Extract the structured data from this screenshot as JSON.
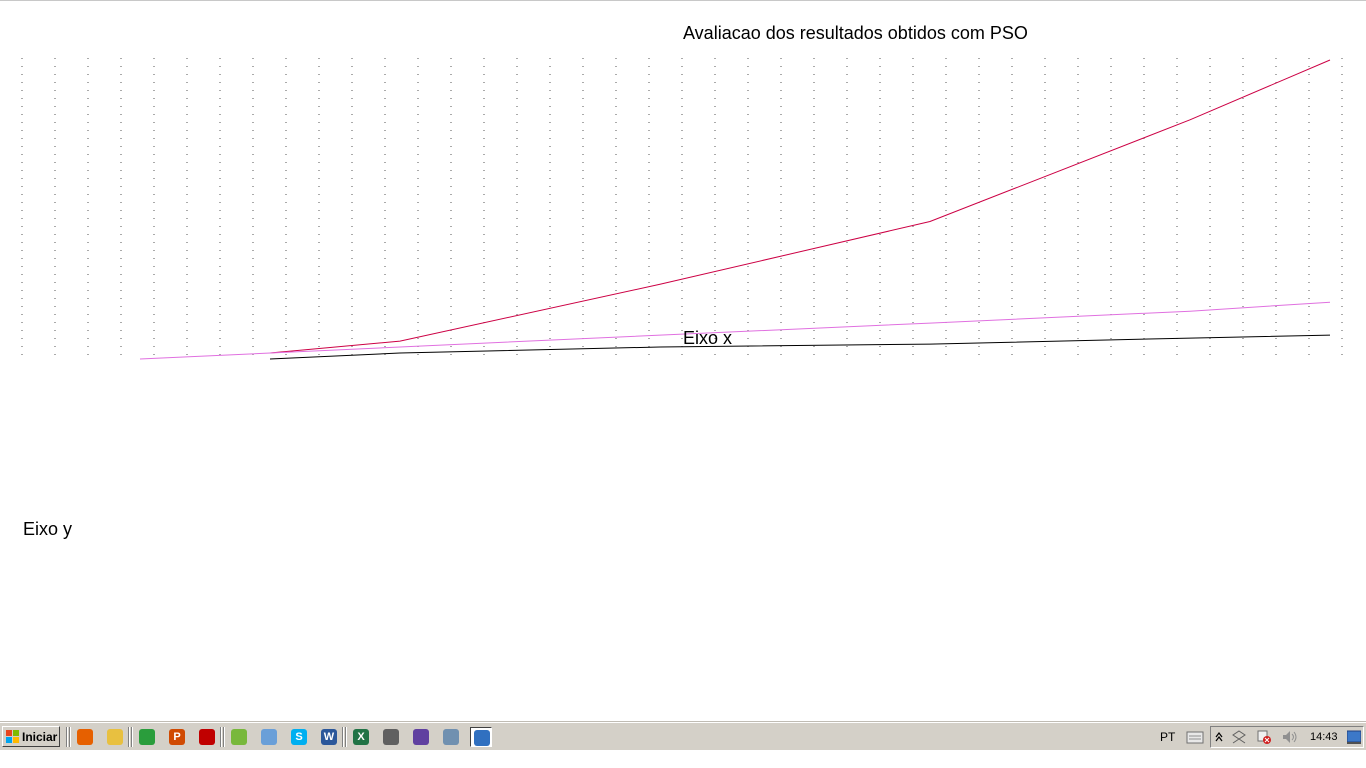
{
  "chart_data": {
    "type": "line",
    "title": "Avaliacao dos resultados obtidos com PSO",
    "xlabel": "Eixo x",
    "ylabel": "Eixo y",
    "grid": true,
    "series": [
      {
        "color": "#cc0044",
        "x": [
          0.27,
          0.4,
          0.66,
          0.93,
          1.19,
          1.33
        ],
        "y": [
          0.02,
          0.06,
          0.25,
          0.46,
          0.8,
          1.0
        ]
      },
      {
        "color": "#e070e0",
        "x": [
          0.14,
          0.4,
          0.66,
          0.93,
          1.19,
          1.33
        ],
        "y": [
          0.0,
          0.04,
          0.08,
          0.12,
          0.16,
          0.19
        ]
      },
      {
        "color": "#000000",
        "x": [
          0.27,
          0.4,
          0.66,
          0.93,
          1.19,
          1.33
        ],
        "y": [
          0.0,
          0.02,
          0.04,
          0.05,
          0.07,
          0.08
        ]
      }
    ]
  },
  "taskbar": {
    "start_label": "Iniciar",
    "apps": [
      {
        "icon": "firefox-icon",
        "color": "#e66000"
      },
      {
        "icon": "folder-icon",
        "color": "#e8c040"
      },
      {
        "icon": "chrome-icon",
        "color": "#2a9d3c"
      },
      {
        "icon": "powerpoint-icon",
        "color": "#d04a02",
        "glyph": "P"
      },
      {
        "icon": "acrobat-icon",
        "color": "#c00000"
      },
      {
        "icon": "utorrent-icon",
        "color": "#78b83c"
      },
      {
        "icon": "paint-icon",
        "color": "#6a9fd8"
      },
      {
        "icon": "skype-icon",
        "color": "#00aff0",
        "glyph": "S"
      },
      {
        "icon": "word-icon",
        "color": "#2b579a",
        "glyph": "W"
      },
      {
        "icon": "excel-icon",
        "color": "#217346",
        "glyph": "X"
      },
      {
        "icon": "printer-icon",
        "color": "#606060"
      },
      {
        "icon": "media-player-icon",
        "color": "#6040a0"
      },
      {
        "icon": "window-icon",
        "color": "#7090b0"
      },
      {
        "icon": "active-window-icon",
        "color": "#3070c0"
      }
    ],
    "language": "PT",
    "clock": "14:43"
  }
}
